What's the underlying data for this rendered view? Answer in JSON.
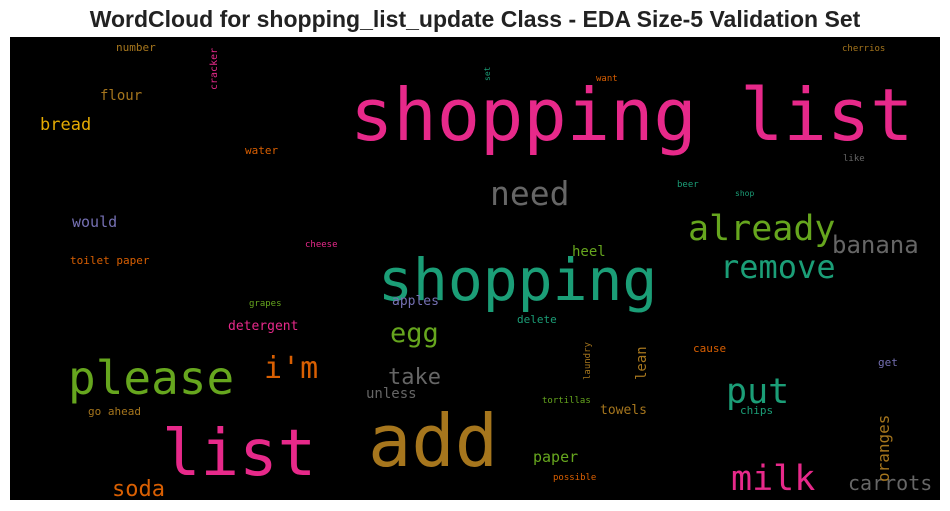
{
  "title": "WordCloud for shopping_list_update Class - EDA Size-5 Validation Set",
  "colors": {
    "background": "#000000",
    "pink": "#e7298a",
    "green": "#1b9e77",
    "olive": "#66a61e",
    "gold": "#a6761d",
    "gray": "#666666",
    "orange": "#d95f02",
    "purple": "#7570b3",
    "yellow": "#e6ab02"
  },
  "chart_data": {
    "type": "wordcloud",
    "words": [
      {
        "text": "shopping list",
        "size": 72,
        "color": "#e7298a",
        "rotate": 0
      },
      {
        "text": "add",
        "size": 72,
        "color": "#a6761d",
        "rotate": 0
      },
      {
        "text": "list",
        "size": 64,
        "color": "#e7298a",
        "rotate": 0
      },
      {
        "text": "shopping",
        "size": 58,
        "color": "#1b9e77",
        "rotate": 0
      },
      {
        "text": "please",
        "size": 46,
        "color": "#66a61e",
        "rotate": 0
      },
      {
        "text": "already",
        "size": 35,
        "color": "#66a61e",
        "rotate": 0
      },
      {
        "text": "put",
        "size": 35,
        "color": "#1b9e77",
        "rotate": 0
      },
      {
        "text": "milk",
        "size": 35,
        "color": "#e7298a",
        "rotate": 0
      },
      {
        "text": "need",
        "size": 33,
        "color": "#666666",
        "rotate": 0
      },
      {
        "text": "remove",
        "size": 32,
        "color": "#1b9e77",
        "rotate": 0
      },
      {
        "text": "i'm",
        "size": 30,
        "color": "#d95f02",
        "rotate": 0
      },
      {
        "text": "egg",
        "size": 27,
        "color": "#66a61e",
        "rotate": 0
      },
      {
        "text": "banana",
        "size": 24,
        "color": "#666666",
        "rotate": 0
      },
      {
        "text": "take",
        "size": 22,
        "color": "#666666",
        "rotate": 0
      },
      {
        "text": "soda",
        "size": 22,
        "color": "#d95f02",
        "rotate": 0
      },
      {
        "text": "carrots",
        "size": 20,
        "color": "#666666",
        "rotate": 0
      },
      {
        "text": "bread",
        "size": 17,
        "color": "#e6ab02",
        "rotate": 0
      },
      {
        "text": "oranges",
        "size": 16,
        "color": "#a6761d",
        "rotate": -90
      },
      {
        "text": "would",
        "size": 15,
        "color": "#7570b3",
        "rotate": 0
      },
      {
        "text": "paper",
        "size": 15,
        "color": "#66a61e",
        "rotate": 0
      },
      {
        "text": "flour",
        "size": 14,
        "color": "#a6761d",
        "rotate": 0
      },
      {
        "text": "unless",
        "size": 14,
        "color": "#666666",
        "rotate": 0
      },
      {
        "text": "lean",
        "size": 14,
        "color": "#a6761d",
        "rotate": -90
      },
      {
        "text": "heel",
        "size": 14,
        "color": "#66a61e",
        "rotate": 0
      },
      {
        "text": "apples",
        "size": 13,
        "color": "#7570b3",
        "rotate": 0
      },
      {
        "text": "detergent",
        "size": 13,
        "color": "#e7298a",
        "rotate": 0
      },
      {
        "text": "towels",
        "size": 13,
        "color": "#a6761d",
        "rotate": 0
      },
      {
        "text": "delete",
        "size": 11,
        "color": "#1b9e77",
        "rotate": 0
      },
      {
        "text": "toilet paper",
        "size": 11,
        "color": "#d95f02",
        "rotate": 0
      },
      {
        "text": "water",
        "size": 11,
        "color": "#d95f02",
        "rotate": 0
      },
      {
        "text": "number",
        "size": 11,
        "color": "#a6761d",
        "rotate": 0
      },
      {
        "text": "go ahead",
        "size": 11,
        "color": "#a6761d",
        "rotate": 0
      },
      {
        "text": "cause",
        "size": 11,
        "color": "#d95f02",
        "rotate": 0
      },
      {
        "text": "chips",
        "size": 11,
        "color": "#1b9e77",
        "rotate": 0
      },
      {
        "text": "get",
        "size": 11,
        "color": "#7570b3",
        "rotate": 0
      },
      {
        "text": "cracker",
        "size": 10,
        "color": "#e7298a",
        "rotate": -90
      },
      {
        "text": "beer",
        "size": 9,
        "color": "#1b9e77",
        "rotate": 0
      },
      {
        "text": "cheese",
        "size": 9,
        "color": "#e7298a",
        "rotate": 0
      },
      {
        "text": "grapes",
        "size": 9,
        "color": "#66a61e",
        "rotate": 0
      },
      {
        "text": "tortillas",
        "size": 9,
        "color": "#66a61e",
        "rotate": 0
      },
      {
        "text": "laundry",
        "size": 9,
        "color": "#a6761d",
        "rotate": -90
      },
      {
        "text": "want",
        "size": 9,
        "color": "#d95f02",
        "rotate": 0
      },
      {
        "text": "cherrios",
        "size": 9,
        "color": "#a6761d",
        "rotate": 0
      },
      {
        "text": "like",
        "size": 9,
        "color": "#666666",
        "rotate": 0
      },
      {
        "text": "shop",
        "size": 8,
        "color": "#1b9e77",
        "rotate": 0
      },
      {
        "text": "set",
        "size": 8,
        "color": "#1b9e77",
        "rotate": -90
      },
      {
        "text": "possible",
        "size": 9,
        "color": "#d95f02",
        "rotate": 0
      }
    ]
  }
}
